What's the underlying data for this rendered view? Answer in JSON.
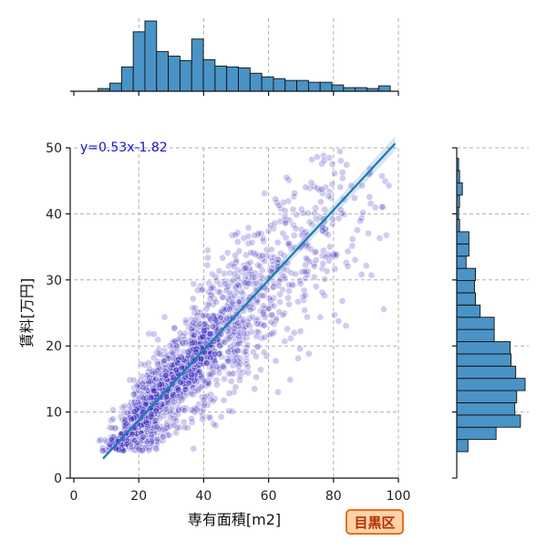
{
  "chart_data": {
    "type": "scatter",
    "xlabel": "専有面積[m2]",
    "ylabel": "賃料[万円]",
    "xlim": [
      0,
      100
    ],
    "ylim": [
      0,
      50
    ],
    "xticks": [
      0,
      20,
      40,
      60,
      80,
      100
    ],
    "yticks": [
      0,
      10,
      20,
      30,
      40,
      50
    ],
    "grid": true,
    "equation": "y=0.53x-1.82",
    "regression": {
      "slope": 0.53,
      "intercept": -1.82,
      "x_range": [
        9,
        99
      ]
    },
    "badge": "目黒区",
    "colors": {
      "points": "#3a2bc0",
      "regression": "#1f77b4",
      "hist_fill": "#4a93c6",
      "equation_text": "#1a12c8",
      "badge_fill": "#ffd3a8",
      "badge_border": "#e8701a",
      "badge_text": "#b32d00"
    },
    "x_histogram": {
      "bin_start": 7.5,
      "bin_width": 3.6,
      "counts": [
        3,
        9,
        27,
        66,
        78,
        44,
        39,
        34,
        58,
        35,
        28,
        27,
        26,
        20,
        16,
        14,
        12,
        12,
        10,
        10,
        7,
        4,
        4,
        3,
        6
      ]
    },
    "y_histogram": {
      "bin_start": 4,
      "bin_width": 1.85,
      "counts": [
        12,
        42,
        68,
        62,
        64,
        73,
        63,
        58,
        57,
        40,
        40,
        25,
        20,
        19,
        20,
        10,
        13,
        13,
        3,
        2,
        3,
        6,
        3,
        2
      ]
    }
  }
}
